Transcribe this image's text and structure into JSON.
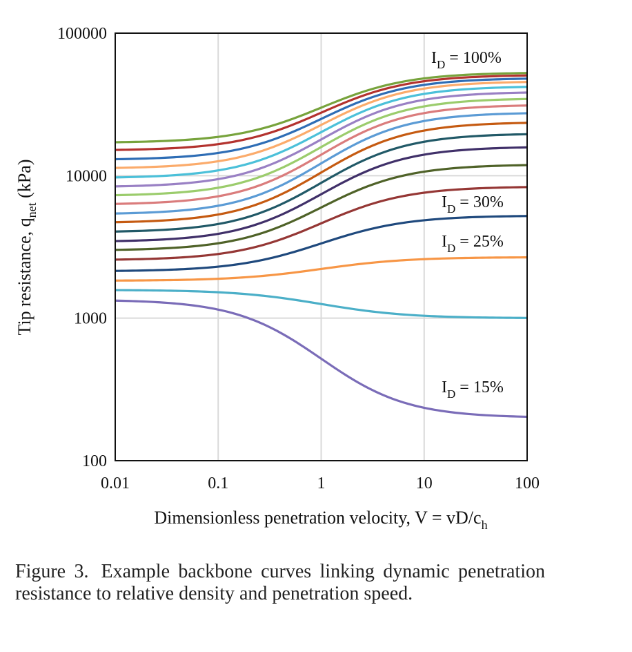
{
  "chart_data": {
    "type": "line",
    "x_scale": "log",
    "y_scale": "log",
    "xlim": [
      0.01,
      100
    ],
    "ylim": [
      100,
      100000
    ],
    "x_ticks": [
      "0.01",
      "0.1",
      "1",
      "10",
      "100"
    ],
    "y_ticks": [
      "100",
      "1000",
      "10000",
      "100000"
    ],
    "grid": true,
    "xlabel": {
      "main": "Dimensionless penetration velocity, V = vD/c",
      "sub": "h"
    },
    "ylabel": {
      "main": "Tip resistance, q",
      "sub": "net",
      "tail": " (kPa)"
    },
    "annotations": [
      {
        "pre": "I",
        "sub": "D",
        "post": " = 100%"
      },
      {
        "pre": "I",
        "sub": "D",
        "post": " = 30%"
      },
      {
        "pre": "I",
        "sub": "D",
        "post": " = 25%"
      },
      {
        "pre": "I",
        "sub": "D",
        "post": " = 15%"
      }
    ],
    "series": [
      {
        "color": "#7a6cb8",
        "undrained": 1350,
        "drained": 200
      },
      {
        "color": "#4bafc8",
        "undrained": 1580,
        "drained": 1000
      },
      {
        "color": "#f79646",
        "undrained": 1830,
        "drained": 2680
      },
      {
        "color": "#1f497d",
        "undrained": 2130,
        "drained": 5250
      },
      {
        "color": "#953735",
        "undrained": 2550,
        "drained": 8400
      },
      {
        "color": "#4f6228",
        "undrained": 2980,
        "drained": 12000
      },
      {
        "color": "#403069",
        "undrained": 3430,
        "drained": 16000
      },
      {
        "color": "#215967",
        "undrained": 4000,
        "drained": 19800
      },
      {
        "color": "#c55a11",
        "undrained": 4650,
        "drained": 23800
      },
      {
        "color": "#5b9bd5",
        "undrained": 5350,
        "drained": 27800
      },
      {
        "color": "#da7c7c",
        "undrained": 6250,
        "drained": 31500
      },
      {
        "color": "#9bcc6c",
        "undrained": 7200,
        "drained": 35000
      },
      {
        "color": "#9980c4",
        "undrained": 8300,
        "drained": 38800
      },
      {
        "color": "#4bc0d9",
        "undrained": 9600,
        "drained": 42500
      },
      {
        "color": "#fbab6b",
        "undrained": 11200,
        "drained": 46000
      },
      {
        "color": "#2e6db5",
        "undrained": 12900,
        "drained": 48500
      },
      {
        "color": "#b3322e",
        "undrained": 15000,
        "drained": 51000
      },
      {
        "color": "#77a33c",
        "undrained": 17000,
        "drained": 53000
      }
    ]
  },
  "caption": {
    "label": "Figure 3.",
    "text": "Example backbone curves linking dynamic penetration resistance to relative density and penetration speed."
  }
}
